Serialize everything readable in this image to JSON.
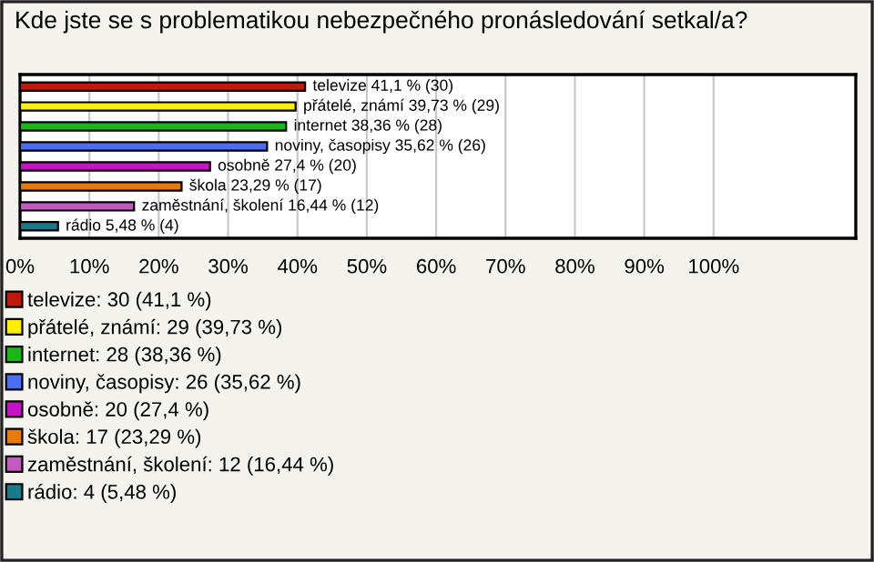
{
  "chart_data": {
    "type": "bar",
    "orientation": "horizontal",
    "title": "Kde jste se s problematikou nebezpečného pronásledování setkal/a?",
    "categories": [
      null,
      null,
      null,
      null,
      null,
      null,
      null,
      null
    ],
    "series": [
      {
        "name": "televize: 30 (41,1 %)",
        "color": "#c0190c",
        "values": [
          41.1,
          null,
          null,
          null,
          null,
          null,
          null,
          null
        ],
        "value_labels": [
          "televize 41,1 % (30)",
          null,
          null,
          null,
          null,
          null,
          null,
          null
        ]
      },
      {
        "name": "přátelé, známí: 29 (39,73 %)",
        "color": "#ffee00",
        "values": [
          null,
          39.73,
          null,
          null,
          null,
          null,
          null,
          null
        ],
        "value_labels": [
          null,
          "přátelé, známí 39,73 % (29)",
          null,
          null,
          null,
          null,
          null,
          null
        ]
      },
      {
        "name": "internet: 28 (38,36 %)",
        "color": "#1cb51c",
        "values": [
          null,
          null,
          38.36,
          null,
          null,
          null,
          null,
          null
        ],
        "value_labels": [
          null,
          null,
          "internet 38,36 % (28)",
          null,
          null,
          null,
          null,
          null
        ]
      },
      {
        "name": "noviny, časopisy: 26 (35,62 %)",
        "color": "#4c6ef5",
        "values": [
          null,
          null,
          null,
          35.62,
          null,
          null,
          null,
          null
        ],
        "value_labels": [
          null,
          null,
          null,
          "noviny, časopisy 35,62 % (26)",
          null,
          null,
          null,
          null
        ]
      },
      {
        "name": "osobně: 20 (27,4 %)",
        "color": "#c415c4",
        "values": [
          null,
          null,
          null,
          null,
          27.4,
          null,
          null,
          null
        ],
        "value_labels": [
          null,
          null,
          null,
          null,
          "osobně 27,4 % (20)",
          null,
          null,
          null
        ]
      },
      {
        "name": "škola: 17 (23,29 %)",
        "color": "#e87a0c",
        "values": [
          null,
          null,
          null,
          null,
          null,
          23.29,
          null,
          null
        ],
        "value_labels": [
          null,
          null,
          null,
          null,
          null,
          "škola 23,29 % (17)",
          null,
          null
        ]
      },
      {
        "name": "zaměstnání, školení: 12 (16,44 %)",
        "color": "#c05cc0",
        "values": [
          null,
          null,
          null,
          null,
          null,
          null,
          16.44,
          null
        ],
        "value_labels": [
          null,
          null,
          null,
          null,
          null,
          null,
          "zaměstnání, školení 16,44 % (12)",
          null
        ]
      },
      {
        "name": "rádio: 4 (5,48 %)",
        "color": "#1a7a8c",
        "values": [
          null,
          null,
          null,
          null,
          null,
          null,
          null,
          5.48
        ],
        "value_labels": [
          null,
          null,
          null,
          null,
          null,
          null,
          null,
          "rádio 5,48 % (4)"
        ]
      }
    ],
    "legend": "bottom left",
    "xlim": [
      0,
      120.5
    ],
    "xticks": [
      {
        "value": 0,
        "label": "0%"
      },
      {
        "value": 10,
        "label": "10%"
      },
      {
        "value": 20,
        "label": "20%"
      },
      {
        "value": 30,
        "label": "30%"
      },
      {
        "value": 40,
        "label": "40%"
      },
      {
        "value": 50,
        "label": "50%"
      },
      {
        "value": 60,
        "label": "60%"
      },
      {
        "value": 70,
        "label": "70%"
      },
      {
        "value": 80,
        "label": "80%"
      },
      {
        "value": 90,
        "label": "90%"
      },
      {
        "value": 100,
        "label": "100%"
      }
    ],
    "grid": "x"
  }
}
